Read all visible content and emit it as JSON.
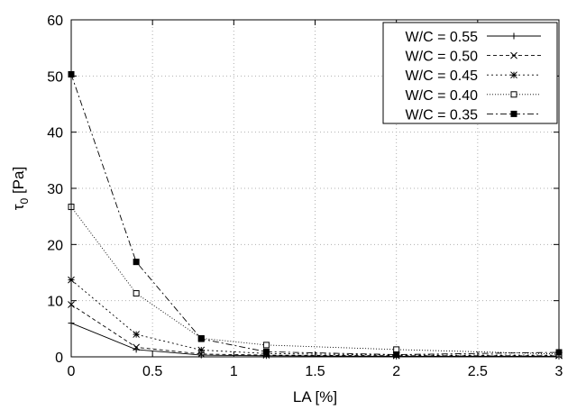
{
  "chart_data": {
    "type": "line",
    "xlabel": "LA [%]",
    "ylabel_main": "τ",
    "ylabel_sub": "0",
    "ylabel_unit": " [Pa]",
    "xlim": [
      0,
      3
    ],
    "ylim": [
      0,
      60
    ],
    "xticks": [
      0,
      0.5,
      1,
      1.5,
      2,
      2.5,
      3
    ],
    "xtick_labels": [
      "0",
      "0.5",
      "1",
      "1.5",
      "2",
      "2.5",
      "3"
    ],
    "yticks": [
      0,
      10,
      20,
      30,
      40,
      50,
      60
    ],
    "ytick_labels": [
      "0",
      "10",
      "20",
      "30",
      "40",
      "50",
      "60"
    ],
    "grid": true,
    "legend_position": "top-right",
    "series": [
      {
        "name": "W/C = 0.55",
        "marker": "plus",
        "dash": "solid",
        "x": [
          0,
          0.4,
          0.8,
          1.2,
          2,
          3
        ],
        "y": [
          6.0,
          1.3,
          0.3,
          0.2,
          0.1,
          0.1
        ]
      },
      {
        "name": "W/C = 0.50",
        "marker": "cross",
        "dash": "dashed",
        "x": [
          0,
          0.4,
          0.8,
          1.2,
          2,
          3
        ],
        "y": [
          9.3,
          1.7,
          0.5,
          0.3,
          0.2,
          0.2
        ]
      },
      {
        "name": "W/C = 0.45",
        "marker": "star",
        "dash": "dotted",
        "x": [
          0,
          0.4,
          0.8,
          1.2,
          2,
          3
        ],
        "y": [
          13.7,
          4.0,
          1.2,
          0.6,
          0.3,
          0.3
        ]
      },
      {
        "name": "W/C = 0.40",
        "marker": "open-square",
        "dash": "fine-dotted",
        "x": [
          0,
          0.4,
          0.8,
          1.2,
          2,
          3
        ],
        "y": [
          26.7,
          11.3,
          3.3,
          2.1,
          1.3,
          0.5
        ]
      },
      {
        "name": "W/C = 0.35",
        "marker": "filled-square",
        "dash": "dash-dot",
        "x": [
          0,
          0.4,
          0.8,
          1.2,
          2,
          3
        ],
        "y": [
          50.3,
          16.9,
          3.2,
          0.9,
          0.4,
          0.8
        ]
      }
    ]
  }
}
